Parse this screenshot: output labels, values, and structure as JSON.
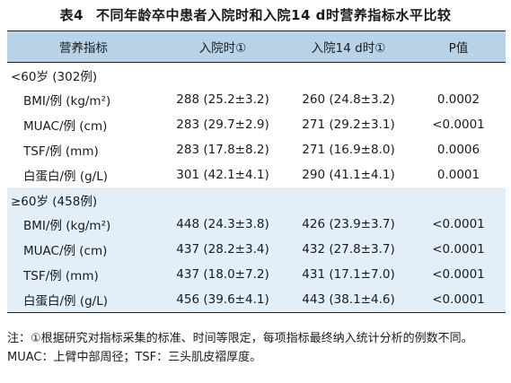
{
  "title": {
    "number": "表4",
    "text": "不同年龄卒中患者入院时和入院14 d时营养指标水平比较"
  },
  "headers": [
    "营养指标",
    "入院时①",
    "入院14 d时①",
    "P值"
  ],
  "groups": [
    {
      "label": "<60岁 (302例)",
      "rows": [
        {
          "indicator": "BMI/例 (kg/m²)",
          "admission": "288 (25.2±3.2)",
          "day14": "260 (24.8±3.2)",
          "p": "0.0002"
        },
        {
          "indicator": "MUAC/例 (cm)",
          "admission": "283 (29.7±2.9)",
          "day14": "271 (29.2±3.1)",
          "p": "<0.0001"
        },
        {
          "indicator": "TSF/例 (mm)",
          "admission": "283 (17.8±8.2)",
          "day14": "271 (16.9±8.0)",
          "p": "0.0006"
        },
        {
          "indicator": "白蛋白/例 (g/L)",
          "admission": "301 (42.1±4.1)",
          "day14": "290 (41.1±4.1)",
          "p": "0.0001"
        }
      ]
    },
    {
      "label": "≥60岁 (458例)",
      "rows": [
        {
          "indicator": "BMI/例 (kg/m²)",
          "admission": "448 (24.3±3.8)",
          "day14": "426 (23.9±3.7)",
          "p": "<0.0001"
        },
        {
          "indicator": "MUAC/例 (cm)",
          "admission": "437 (28.2±3.4)",
          "day14": "432 (27.8±3.7)",
          "p": "<0.0001"
        },
        {
          "indicator": "TSF/例 (mm)",
          "admission": "437 (18.0±7.2)",
          "day14": "431 (17.1±7.0)",
          "p": "<0.0001"
        },
        {
          "indicator": "白蛋白/例 (g/L)",
          "admission": "456 (39.6±4.1)",
          "day14": "443 (38.1±4.6)",
          "p": "<0.0001"
        }
      ]
    }
  ],
  "note": "注：①根据研究对指标采集的标准、时间等限定，每项指标最终纳入统计分析的例数不同。MUAC：上臂中部周径；TSF：三头肌皮褶厚度。",
  "colors": {
    "header_bg": "#b8d3e8",
    "row_shade": "#e2eef8",
    "rule": "#222222"
  }
}
